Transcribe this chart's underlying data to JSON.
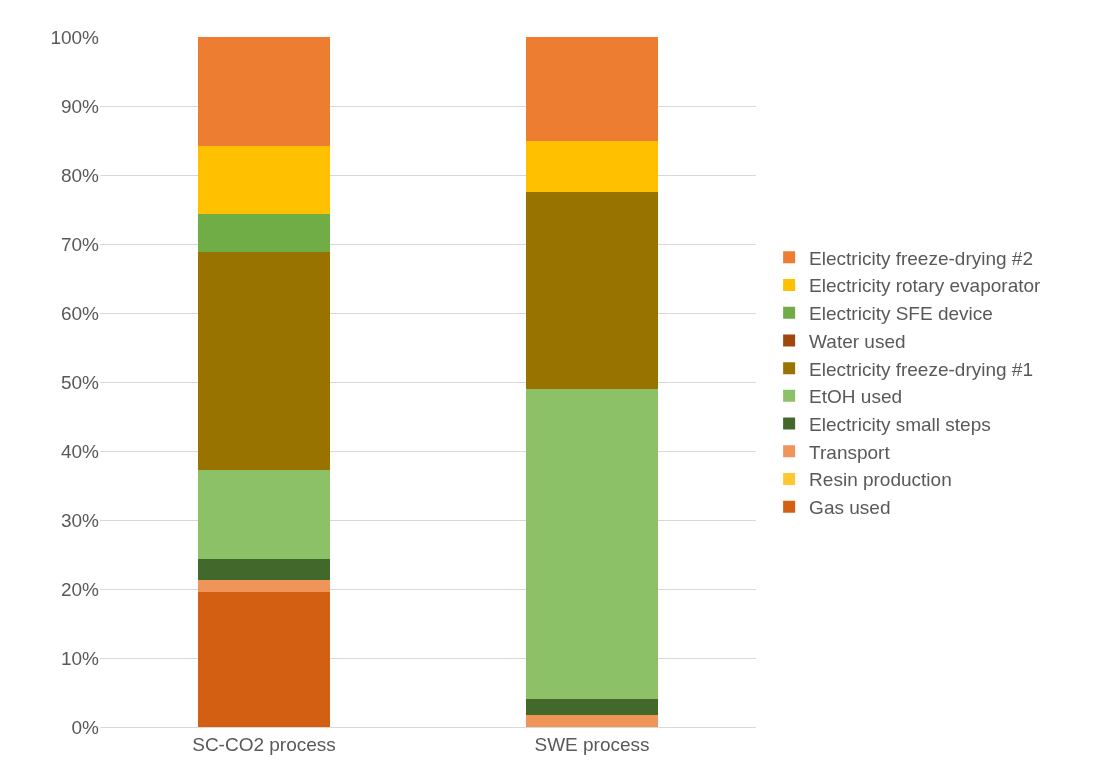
{
  "chart_data": {
    "type": "bar",
    "stacked": true,
    "categories": [
      "SC-CO2 process",
      "SWE process"
    ],
    "ylim": [
      0,
      100
    ],
    "yticks": [
      {
        "value": 0,
        "label": "0%"
      },
      {
        "value": 10,
        "label": "10%"
      },
      {
        "value": 20,
        "label": "20%"
      },
      {
        "value": 30,
        "label": "30%"
      },
      {
        "value": 40,
        "label": "40%"
      },
      {
        "value": 50,
        "label": "50%"
      },
      {
        "value": 60,
        "label": "60%"
      },
      {
        "value": 70,
        "label": "70%"
      },
      {
        "value": 80,
        "label": "80%"
      },
      {
        "value": 90,
        "label": "90%"
      },
      {
        "value": 100,
        "label": "100%"
      }
    ],
    "grid": "y",
    "legend": "right",
    "series": [
      {
        "name": "Gas used",
        "color": "#d25f12",
        "values": [
          19.5,
          0
        ]
      },
      {
        "name": "Resin production",
        "color": "#ffc832",
        "values": [
          0,
          0
        ]
      },
      {
        "name": "Transport",
        "color": "#f0955a",
        "values": [
          1.8,
          1.7
        ]
      },
      {
        "name": "Electricity small steps",
        "color": "#43682b",
        "values": [
          3.0,
          2.3
        ]
      },
      {
        "name": "EtOH used",
        "color": "#8cc168",
        "values": [
          13.0,
          45.0
        ]
      },
      {
        "name": "Electricity freeze-drying #1",
        "color": "#997300",
        "values": [
          31.5,
          28.6
        ]
      },
      {
        "name": "Water used",
        "color": "#9e480e",
        "values": [
          0,
          0
        ]
      },
      {
        "name": "Electricity SFE device",
        "color": "#70ad47",
        "values": [
          5.5,
          0
        ]
      },
      {
        "name": "Electricity rotary evaporator",
        "color": "#ffc000",
        "values": [
          9.9,
          7.3
        ]
      },
      {
        "name": "Electricity freeze-drying #2",
        "color": "#ed7d31",
        "values": [
          15.8,
          15.1
        ]
      }
    ]
  }
}
